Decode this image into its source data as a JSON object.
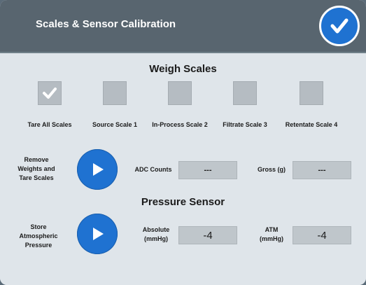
{
  "header": {
    "title": "Scales & Sensor Calibration"
  },
  "weigh_scales": {
    "title": "Weigh Scales",
    "checkboxes": [
      {
        "label": "Tare All Scales",
        "checked": true
      },
      {
        "label": "Source Scale 1",
        "checked": false
      },
      {
        "label": "In-Process Scale 2",
        "checked": false
      },
      {
        "label": "Filtrate Scale 3",
        "checked": false
      },
      {
        "label": "Retentate Scale 4",
        "checked": false
      }
    ],
    "action_label": "Remove Weights and Tare Scales",
    "adc_label": "ADC Counts",
    "adc_value": "---",
    "gross_label": "Gross (g)",
    "gross_value": "---"
  },
  "pressure_sensor": {
    "title": "Pressure Sensor",
    "action_label": "Store Atmospheric Pressure",
    "absolute_label": "Absolute (mmHg)",
    "absolute_value": "-4",
    "atm_label": "ATM (mmHg)",
    "atm_value": "-4"
  },
  "colors": {
    "header_bg": "#58656f",
    "panel_bg": "#dfe5ea",
    "accent_blue": "#1f72d1",
    "field_bg": "#bfc6cb"
  },
  "icons": {
    "confirm": "check-icon",
    "play": "play-icon",
    "checked": "check-icon"
  }
}
